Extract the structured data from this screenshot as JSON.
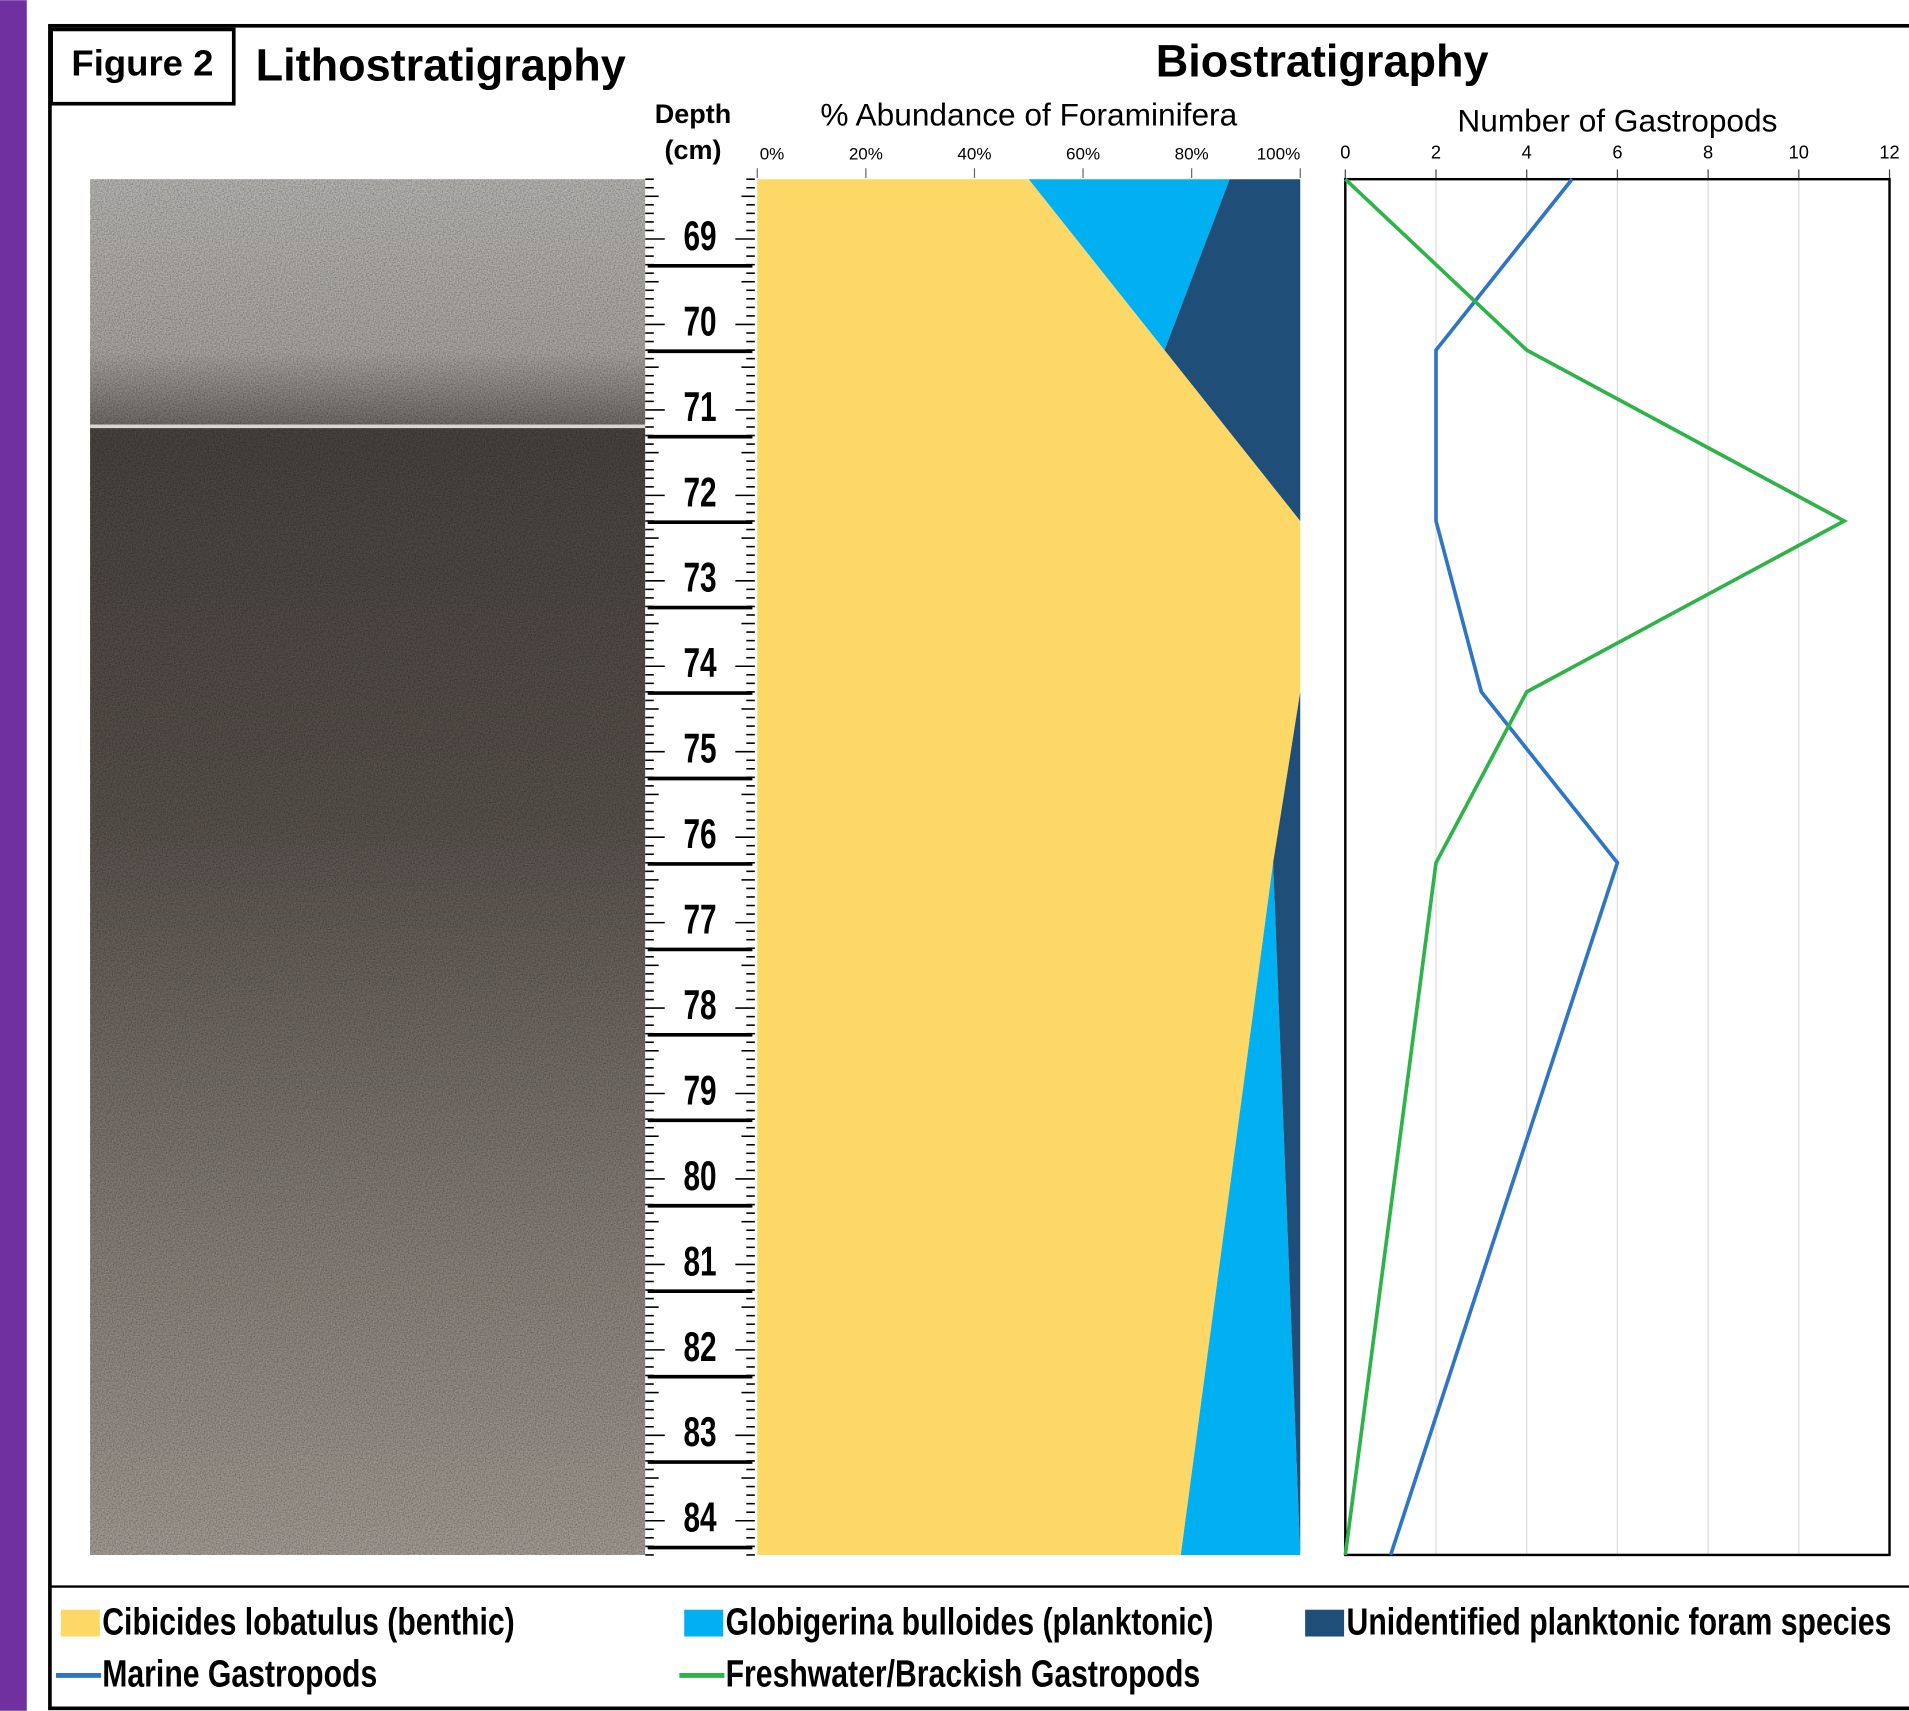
{
  "figure_label": "Figure 2",
  "section_titles": [
    "Lithostratigraphy",
    "Biostratigraphy"
  ],
  "chart_data": [
    {
      "type": "area",
      "stacked": true,
      "orientation": "vertical",
      "title": "% Abundance of Foraminifera",
      "x_label": "Depth (cm)",
      "x": [
        68.3,
        70.3,
        72.3,
        74.3,
        76.3,
        84.4
      ],
      "xlim": [
        68.3,
        84.4
      ],
      "xticks": [
        69,
        70,
        71,
        72,
        73,
        74,
        75,
        76,
        77,
        78,
        79,
        80,
        81,
        82,
        83,
        84
      ],
      "ylim": [
        0,
        100
      ],
      "yticks": [
        {
          "value": 0,
          "label": "0%"
        },
        {
          "value": 20,
          "label": "20%"
        },
        {
          "value": 40,
          "label": "40%"
        },
        {
          "value": 60,
          "label": "60%"
        },
        {
          "value": 80,
          "label": "80%"
        },
        {
          "value": 100,
          "label": "100%"
        }
      ],
      "series": [
        {
          "name": "Cibicides lobatulus (benthic)",
          "color": "#fdd866",
          "values": [
            50,
            75,
            100,
            100,
            95,
            78
          ]
        },
        {
          "name": "Globigerina bulloides (planktonic)",
          "color": "#00b0f0",
          "values": [
            37,
            0,
            0,
            0,
            0,
            22
          ]
        },
        {
          "name": "Unidentified planktonic foram species",
          "color": "#1f4e79",
          "values": [
            13,
            25,
            0,
            0,
            5,
            0
          ]
        }
      ]
    },
    {
      "type": "line",
      "orientation": "vertical",
      "title": "Number of Gastropods",
      "x": [
        68.3,
        70.3,
        72.3,
        74.3,
        76.3,
        84.4
      ],
      "xlim": [
        68.3,
        84.4
      ],
      "ylim": [
        0,
        12
      ],
      "yticks": [
        0,
        2,
        4,
        6,
        8,
        10,
        12
      ],
      "grid": true,
      "series": [
        {
          "name": "Marine Gastropods",
          "color": "#2e75c6",
          "values": [
            5,
            2,
            2,
            3,
            6,
            1
          ]
        },
        {
          "name": "Freshwater/Brackish Gastropods",
          "color": "#2db34a",
          "values": [
            0,
            4,
            11,
            4,
            2,
            0
          ]
        }
      ]
    }
  ]
}
